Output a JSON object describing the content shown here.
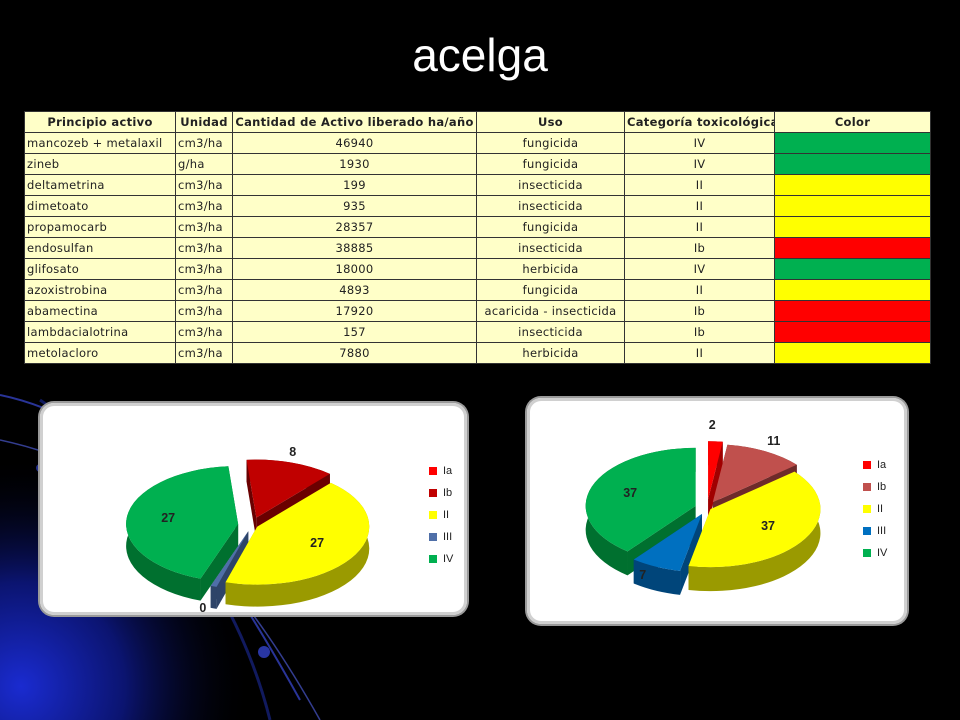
{
  "slide": {
    "title": "acelga"
  },
  "table": {
    "headers": [
      "Principio activo",
      "Unidad",
      "Cantidad de Activo liberado ha/año",
      "Uso",
      "Categoría toxicológica",
      "Color"
    ],
    "rows": [
      [
        "mancozeb + metalaxil",
        "cm3/ha",
        "46940",
        "fungicida",
        "IV",
        "#00b050"
      ],
      [
        "zineb",
        "g/ha",
        "1930",
        "fungicida",
        "IV",
        "#00b050"
      ],
      [
        "deltametrina",
        "cm3/ha",
        "199",
        "insecticida",
        "II",
        "#ffff00"
      ],
      [
        "dimetoato",
        "cm3/ha",
        "935",
        "insecticida",
        "II",
        "#ffff00"
      ],
      [
        "propamocarb",
        "cm3/ha",
        "28357",
        "fungicida",
        "II",
        "#ffff00"
      ],
      [
        "endosulfan",
        "cm3/ha",
        "38885",
        "insecticida",
        "Ib",
        "#ff0000"
      ],
      [
        "glifosato",
        "cm3/ha",
        "18000",
        "herbicida",
        "IV",
        "#00b050"
      ],
      [
        "azoxistrobina",
        "cm3/ha",
        "4893",
        "fungicida",
        "II",
        "#ffff00"
      ],
      [
        "abamectina",
        "cm3/ha",
        "17920",
        "acaricida - insecticida",
        "Ib",
        "#ff0000"
      ],
      [
        "lambdacialotrina",
        "cm3/ha",
        "157",
        "insecticida",
        "Ib",
        "#ff0000"
      ],
      [
        "metolacloro",
        "cm3/ha",
        "7880",
        "herbicida",
        "II",
        "#ffff00"
      ]
    ]
  },
  "chart_data": [
    {
      "type": "pie",
      "categories": [
        "Ia",
        "Ib",
        "II",
        "III",
        "IV"
      ],
      "values": [
        0,
        8,
        27,
        0,
        27
      ],
      "data_labels": [
        "",
        "8",
        "27",
        "0",
        "27"
      ],
      "colors": [
        "#ff0000",
        "#c00000",
        "#ffff00",
        "#4f6fa8",
        "#00b050"
      ],
      "side_colors": [
        "#a00000",
        "#6a0000",
        "#9a9a00",
        "#2e4468",
        "#00702f"
      ],
      "legend_position": "right",
      "three_d": true
    },
    {
      "type": "pie",
      "categories": [
        "Ia",
        "Ib",
        "II",
        "III",
        "IV"
      ],
      "values": [
        2,
        11,
        37,
        7,
        37
      ],
      "data_labels": [
        "2",
        "11",
        "37",
        "7",
        "37"
      ],
      "colors": [
        "#ff0000",
        "#c0504d",
        "#ffff00",
        "#0070c0",
        "#00b050"
      ],
      "side_colors": [
        "#a00000",
        "#6e2b2a",
        "#9a9a00",
        "#00457a",
        "#00702f"
      ],
      "legend_position": "right",
      "three_d": true
    }
  ]
}
